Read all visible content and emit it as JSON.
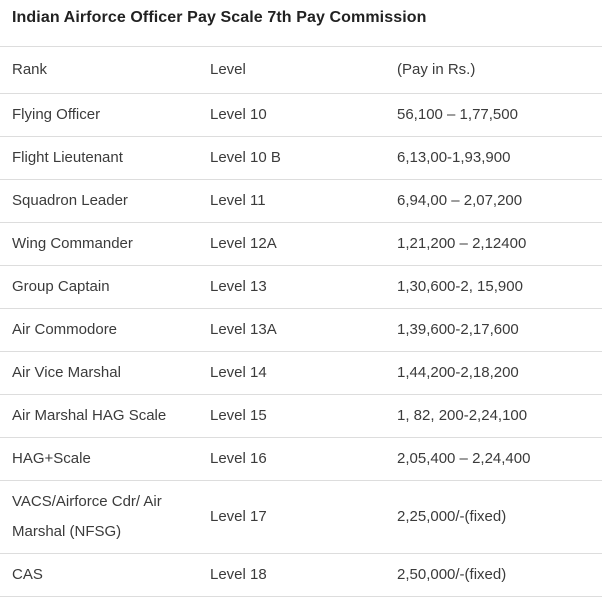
{
  "page": {
    "title": "Indian Airforce Officer Pay Scale 7th Pay Commission"
  },
  "table": {
    "headers": [
      "Rank",
      "Level",
      "(Pay in Rs.)"
    ],
    "rows": [
      {
        "rank": "Flying Officer",
        "level": "Level 10",
        "pay": "56,100 – 1,77,500"
      },
      {
        "rank": "Flight Lieutenant",
        "level": "Level 10 B",
        "pay": "6,13,00-1,93,900"
      },
      {
        "rank": "Squadron Leader",
        "level": "Level 11",
        "pay": "6,94,00 – 2,07,200"
      },
      {
        "rank": "Wing Commander",
        "level": "Level 12A",
        "pay": "1,21,200 – 2,12400"
      },
      {
        "rank": "Group Captain",
        "level": "Level 13",
        "pay": "1,30,600-2, 15,900"
      },
      {
        "rank": "Air Commodore",
        "level": "Level 13A",
        "pay": "1,39,600-2,17,600"
      },
      {
        "rank": "Air Vice Marshal",
        "level": "Level 14",
        "pay": "1,44,200-2,18,200"
      },
      {
        "rank": "Air Marshal HAG Scale",
        "level": "Level 15",
        "pay": "1, 82, 200-2,24,100"
      },
      {
        "rank": "HAG+Scale",
        "level": "Level 16",
        "pay": "2,05,400 – 2,24,400"
      },
      {
        "rank": "VACS/Airforce Cdr/ Air Marshal (NFSG)",
        "level": "Level 17",
        "pay": "2,25,000/-(fixed)"
      },
      {
        "rank": "CAS",
        "level": "Level 18",
        "pay": "2,50,000/-(fixed)"
      }
    ]
  },
  "colors": {
    "background": "#ffffff",
    "title_text": "#222222",
    "body_text": "#3b3b3b",
    "border": "#dddddd"
  }
}
